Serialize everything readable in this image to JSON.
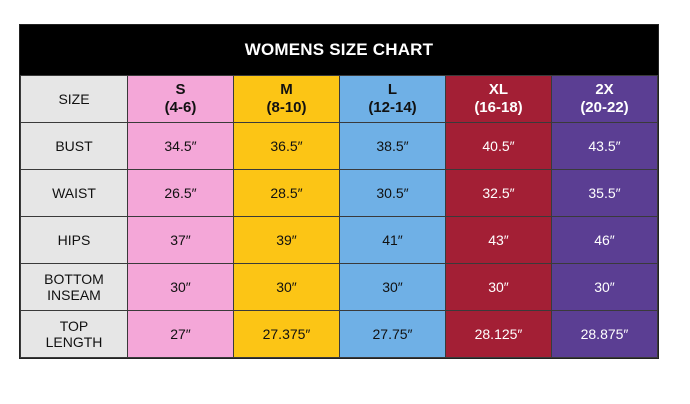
{
  "title": "WOMENS SIZE CHART",
  "colors": {
    "S": "#f4a7d8",
    "M": "#fcc515",
    "L": "#6fb0e6",
    "XL": "#a31f35",
    "2X": "#5b3e93",
    "label_bg": "#e6e6e6",
    "title_bg": "#000000"
  },
  "header": {
    "label": "SIZE",
    "sizes": [
      {
        "name": "S",
        "range": "(4-6)"
      },
      {
        "name": "M",
        "range": "(8-10)"
      },
      {
        "name": "L",
        "range": "(12-14)"
      },
      {
        "name": "XL",
        "range": "(16-18)"
      },
      {
        "name": "2X",
        "range": "(20-22)"
      }
    ]
  },
  "rows": [
    {
      "label_lines": [
        "BUST"
      ],
      "values": [
        "34.5″",
        "36.5″",
        "38.5″",
        "40.5″",
        "43.5″"
      ]
    },
    {
      "label_lines": [
        "WAIST"
      ],
      "values": [
        "26.5″",
        "28.5″",
        "30.5″",
        "32.5″",
        "35.5″"
      ]
    },
    {
      "label_lines": [
        "HIPS"
      ],
      "values": [
        "37″",
        "39″",
        "41″",
        "43″",
        "46″"
      ]
    },
    {
      "label_lines": [
        "BOTTOM",
        "INSEAM"
      ],
      "values": [
        "30″",
        "30″",
        "30″",
        "30″",
        "30″"
      ]
    },
    {
      "label_lines": [
        "TOP",
        "LENGTH"
      ],
      "values": [
        "27″",
        "27.375″",
        "27.75″",
        "28.125″",
        "28.875″"
      ]
    }
  ]
}
